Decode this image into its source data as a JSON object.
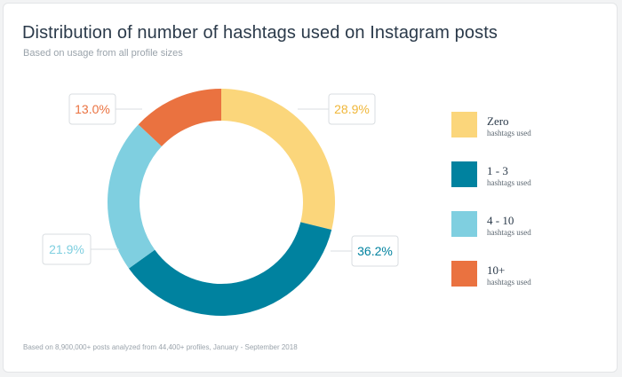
{
  "header": {
    "title": "Distribution of number of hashtags used on Instagram posts",
    "subtitle": "Based on usage from all profile sizes"
  },
  "footer": {
    "note": "Based on 8,900,000+ posts analyzed from 44,400+ profiles, January - September 2018"
  },
  "chart_data": {
    "type": "pie",
    "variant": "donut",
    "categories": [
      "Zero",
      "1 - 3",
      "4 - 10",
      "10+"
    ],
    "category_sublabels": [
      "hashtags used",
      "hashtags used",
      "hashtags used",
      "hashtags used"
    ],
    "values": [
      28.9,
      36.2,
      21.9,
      13.0
    ],
    "data_labels": [
      "28.9%",
      "36.2%",
      "21.9%",
      "13.0%"
    ],
    "colors": [
      "#fbd67b",
      "#00829f",
      "#7fcfe0",
      "#ea7240"
    ],
    "legend_position": "right"
  }
}
